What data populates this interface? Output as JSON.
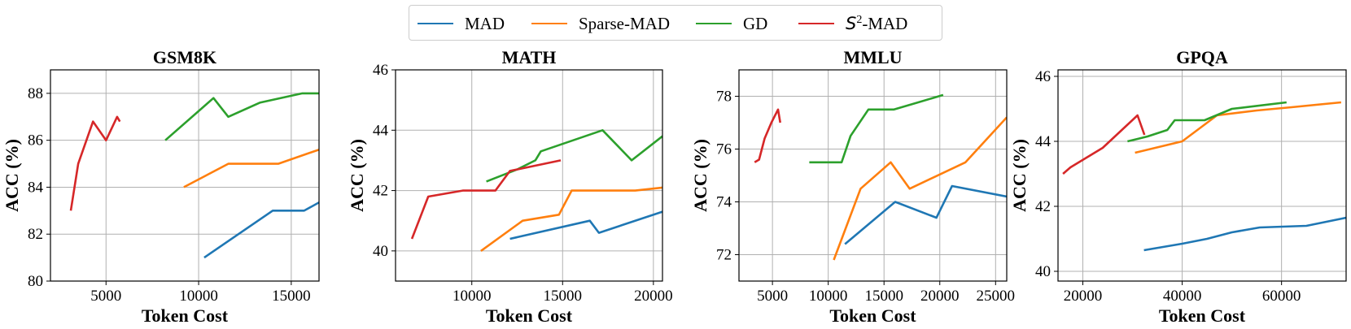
{
  "legend": {
    "items": [
      {
        "key": "MAD",
        "label": "MAD",
        "color": "#1f77b4"
      },
      {
        "key": "SparseMAD",
        "label": "Sparse-MAD",
        "color": "#ff7f0e"
      },
      {
        "key": "GD",
        "label": "GD",
        "color": "#2ca02c"
      },
      {
        "key": "S2MAD",
        "label_base": "S",
        "label_sup": "2",
        "label_rest": "-MAD",
        "color": "#d62728"
      }
    ]
  },
  "chart_data": [
    {
      "type": "line",
      "title": "GSM8K",
      "xlabel": "Token Cost",
      "ylabel": "ACC (%)",
      "xlim": [
        2000,
        16500
      ],
      "ylim": [
        80,
        89
      ],
      "xticks": [
        5000,
        10000,
        15000
      ],
      "yticks": [
        80,
        82,
        84,
        86,
        88
      ],
      "grid": true,
      "series": [
        {
          "name": "MAD",
          "x": [
            10300,
            14000,
            15700,
            16500
          ],
          "y": [
            81.0,
            83.0,
            83.0,
            83.35
          ]
        },
        {
          "name": "Sparse-MAD",
          "x": [
            9200,
            11600,
            14300,
            16500
          ],
          "y": [
            84.0,
            85.0,
            85.0,
            85.6
          ]
        },
        {
          "name": "GD",
          "x": [
            8200,
            10800,
            11600,
            13300,
            15600,
            16500
          ],
          "y": [
            86.0,
            87.8,
            87.0,
            87.6,
            88.0,
            88.0
          ]
        },
        {
          "name": "S2-MAD",
          "x": [
            3100,
            3500,
            4300,
            5000,
            5600,
            5750
          ],
          "y": [
            83.0,
            85.0,
            86.8,
            86.0,
            87.0,
            86.8
          ]
        }
      ]
    },
    {
      "type": "line",
      "title": "MATH",
      "xlabel": "Token Cost",
      "ylabel": "ACC (%)",
      "xlim": [
        5800,
        20500
      ],
      "ylim": [
        39,
        46
      ],
      "xticks": [
        10000,
        15000,
        20000
      ],
      "yticks": [
        40,
        42,
        44,
        46
      ],
      "grid": true,
      "series": [
        {
          "name": "MAD",
          "x": [
            12100,
            16500,
            17000,
            20500
          ],
          "y": [
            40.4,
            41.0,
            40.6,
            41.3
          ]
        },
        {
          "name": "Sparse-MAD",
          "x": [
            10500,
            12800,
            14800,
            15500,
            19000,
            20500
          ],
          "y": [
            40.0,
            41.0,
            41.2,
            42.0,
            42.0,
            42.1
          ]
        },
        {
          "name": "GD",
          "x": [
            10800,
            12500,
            13500,
            13800,
            17200,
            18800,
            20500
          ],
          "y": [
            42.3,
            42.7,
            43.0,
            43.3,
            44.0,
            43.0,
            43.8
          ]
        },
        {
          "name": "S2-MAD",
          "x": [
            6700,
            7600,
            9500,
            11300,
            12100,
            14900
          ],
          "y": [
            40.4,
            41.8,
            42.0,
            42.0,
            42.65,
            43.0
          ]
        }
      ]
    },
    {
      "type": "line",
      "title": "MMLU",
      "xlabel": "Token Cost",
      "ylabel": "ACC (%)",
      "xlim": [
        2000,
        26000
      ],
      "ylim": [
        71,
        79
      ],
      "xticks": [
        5000,
        10000,
        15000,
        20000,
        25000
      ],
      "yticks": [
        72,
        74,
        76,
        78
      ],
      "grid": true,
      "series": [
        {
          "name": "MAD",
          "x": [
            11500,
            16000,
            19700,
            21100,
            26000
          ],
          "y": [
            72.4,
            74.0,
            73.4,
            74.6,
            74.2
          ]
        },
        {
          "name": "Sparse-MAD",
          "x": [
            10500,
            12900,
            15600,
            17300,
            22300,
            26000
          ],
          "y": [
            71.8,
            74.5,
            75.5,
            74.5,
            75.5,
            77.2
          ]
        },
        {
          "name": "GD",
          "x": [
            8300,
            11200,
            12000,
            13600,
            15900,
            20300
          ],
          "y": [
            75.5,
            75.5,
            76.5,
            77.5,
            77.5,
            78.05
          ]
        },
        {
          "name": "S2-MAD",
          "x": [
            3400,
            3800,
            4300,
            4900,
            5500,
            5700
          ],
          "y": [
            75.5,
            75.6,
            76.4,
            77.0,
            77.5,
            77.0
          ]
        }
      ]
    },
    {
      "type": "line",
      "title": "GPQA",
      "xlabel": "Token Cost",
      "ylabel": "ACC (%)",
      "xlim": [
        15000,
        73000
      ],
      "ylim": [
        39.7,
        46.2
      ],
      "xticks": [
        20000,
        40000,
        60000
      ],
      "yticks": [
        40,
        42,
        44,
        46
      ],
      "grid": true,
      "series": [
        {
          "name": "MAD",
          "x": [
            32300,
            40000,
            45000,
            50000,
            55600,
            65000,
            73000
          ],
          "y": [
            40.65,
            40.85,
            41.0,
            41.2,
            41.35,
            41.4,
            41.65
          ]
        },
        {
          "name": "Sparse-MAD",
          "x": [
            30500,
            40000,
            47000,
            55000,
            62000,
            72000
          ],
          "y": [
            43.65,
            44.0,
            44.8,
            44.95,
            45.05,
            45.2
          ]
        },
        {
          "name": "GD",
          "x": [
            29000,
            33000,
            37000,
            38500,
            44500,
            50000,
            61000
          ],
          "y": [
            44.0,
            44.15,
            44.35,
            44.65,
            44.65,
            45.0,
            45.2
          ]
        },
        {
          "name": "S2-MAD",
          "x": [
            16000,
            17500,
            24000,
            31000,
            32400
          ],
          "y": [
            43.0,
            43.2,
            43.8,
            44.8,
            44.2
          ]
        }
      ]
    }
  ]
}
